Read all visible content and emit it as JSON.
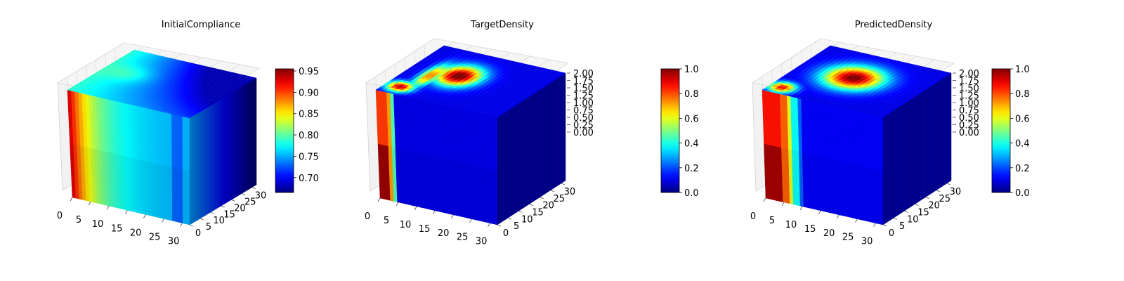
{
  "chart_data": [
    {
      "type": "voxel3d",
      "title": "InitialCompliance",
      "x_ticks": [
        "0",
        "5",
        "10",
        "15",
        "20",
        "25",
        "30"
      ],
      "y_ticks": [
        "0",
        "5",
        "10",
        "15",
        "20",
        "25",
        "30"
      ],
      "z_ticks": [],
      "colorbar": {
        "range": [
          0.665,
          0.955
        ],
        "ticks": [
          0.7,
          0.75,
          0.8,
          0.85,
          0.9,
          0.95
        ],
        "labels": [
          "0.70",
          "0.75",
          "0.80",
          "0.85",
          "0.90",
          "0.95"
        ]
      },
      "field": "compliance"
    },
    {
      "type": "voxel3d",
      "title": "TargetDensity",
      "x_ticks": [
        "0",
        "5",
        "10",
        "15",
        "20",
        "25",
        "30"
      ],
      "y_ticks": [
        "0",
        "5",
        "10",
        "15",
        "20",
        "25",
        "30"
      ],
      "z_ticks": [
        "0.00",
        "0.25",
        "0.50",
        "0.75",
        "1.00",
        "1.25",
        "1.50",
        "1.75",
        "2.00"
      ],
      "colorbar": {
        "range": [
          0,
          1
        ],
        "ticks": [
          0,
          0.2,
          0.4,
          0.6,
          0.8,
          1.0
        ],
        "labels": [
          "0.0",
          "0.2",
          "0.4",
          "0.6",
          "0.8",
          "1.0"
        ]
      },
      "field": "target"
    },
    {
      "type": "voxel3d",
      "title": "PredictedDensity",
      "x_ticks": [
        "0",
        "5",
        "10",
        "15",
        "20",
        "25",
        "30"
      ],
      "y_ticks": [
        "0",
        "5",
        "10",
        "15",
        "20",
        "25",
        "30"
      ],
      "z_ticks": [
        "0.00",
        "0.25",
        "0.50",
        "0.75",
        "1.00",
        "1.25",
        "1.50",
        "1.75",
        "2.00"
      ],
      "colorbar": {
        "range": [
          0,
          1
        ],
        "ticks": [
          0,
          0.2,
          0.4,
          0.6,
          0.8,
          1.0
        ],
        "labels": [
          "0.0",
          "0.2",
          "0.4",
          "0.6",
          "0.8",
          "1.0"
        ]
      },
      "field": "predicted"
    }
  ]
}
